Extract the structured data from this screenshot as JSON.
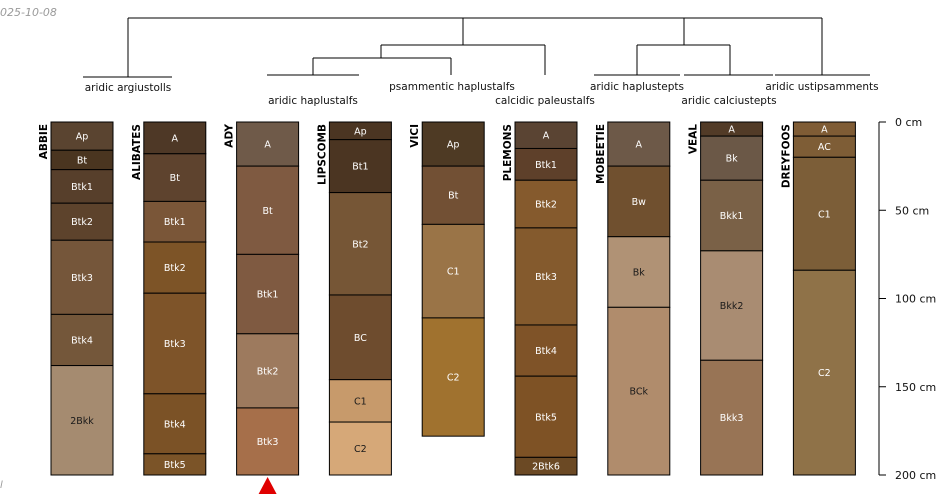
{
  "stamp": "025-10-08",
  "corner_text": "l",
  "chart_data": {
    "type": "soil-profile-sketch",
    "depth_unit": "cm",
    "depth_axis": {
      "min": 0,
      "max": 200,
      "ticks": [
        {
          "value": 0,
          "label": "0 cm"
        },
        {
          "value": 50,
          "label": "50 cm"
        },
        {
          "value": 100,
          "label": "100 cm"
        },
        {
          "value": 150,
          "label": "150 cm"
        },
        {
          "value": 200,
          "label": "200 cm"
        }
      ]
    },
    "taxonomic_labels": [
      "aridic argiustolls",
      "aridic haplustalfs",
      "psammentic haplustalfs",
      "calcidic paleustalfs",
      "aridic haplustepts",
      "aridic calciustepts",
      "aridic ustipsamments"
    ],
    "truncation_marker": {
      "profile": "ADY",
      "color": "#e00000"
    },
    "profiles": [
      {
        "name": "ABBIE",
        "horizons": [
          {
            "name": "Ap",
            "top": 0,
            "bottom": 16,
            "color": "#5a4430",
            "dark_text": false
          },
          {
            "name": "Bt",
            "top": 16,
            "bottom": 27,
            "color": "#4a3520",
            "dark_text": false
          },
          {
            "name": "Btk1",
            "top": 27,
            "bottom": 46,
            "color": "#573f2b",
            "dark_text": false
          },
          {
            "name": "Btk2",
            "top": 46,
            "bottom": 67,
            "color": "#5d432c",
            "dark_text": false
          },
          {
            "name": "Btk3",
            "top": 67,
            "bottom": 109,
            "color": "#75563a",
            "dark_text": false
          },
          {
            "name": "Btk4",
            "top": 109,
            "bottom": 138,
            "color": "#74573a",
            "dark_text": false
          },
          {
            "name": "2Bkk",
            "top": 138,
            "bottom": 200,
            "color": "#a58b70",
            "dark_text": true
          }
        ]
      },
      {
        "name": "ALIBATES",
        "horizons": [
          {
            "name": "A",
            "top": 0,
            "bottom": 18,
            "color": "#4e3826",
            "dark_text": false
          },
          {
            "name": "Bt",
            "top": 18,
            "bottom": 45,
            "color": "#5e432e",
            "dark_text": false
          },
          {
            "name": "Btk1",
            "top": 45,
            "bottom": 68,
            "color": "#7a5638",
            "dark_text": false
          },
          {
            "name": "Btk2",
            "top": 68,
            "bottom": 97,
            "color": "#7d5427",
            "dark_text": false
          },
          {
            "name": "Btk3",
            "top": 97,
            "bottom": 154,
            "color": "#7e5429",
            "dark_text": false
          },
          {
            "name": "Btk4",
            "top": 154,
            "bottom": 188,
            "color": "#7b5226",
            "dark_text": false
          },
          {
            "name": "Btk5",
            "top": 188,
            "bottom": 200,
            "color": "#7b5428",
            "dark_text": false
          }
        ]
      },
      {
        "name": "ADY",
        "horizons": [
          {
            "name": "A",
            "top": 0,
            "bottom": 25,
            "color": "#6f5a49",
            "dark_text": false
          },
          {
            "name": "Bt",
            "top": 25,
            "bottom": 75,
            "color": "#7f5a41",
            "dark_text": false
          },
          {
            "name": "Btk1",
            "top": 75,
            "bottom": 120,
            "color": "#7f5a41",
            "dark_text": false
          },
          {
            "name": "Btk2",
            "top": 120,
            "bottom": 162,
            "color": "#9d7a5e",
            "dark_text": false
          },
          {
            "name": "Btk3",
            "top": 162,
            "bottom": 200,
            "color": "#a66f4a",
            "dark_text": false
          }
        ]
      },
      {
        "name": "LIPSCOMB",
        "horizons": [
          {
            "name": "Ap",
            "top": 0,
            "bottom": 10,
            "color": "#4b3522",
            "dark_text": false
          },
          {
            "name": "Bt1",
            "top": 10,
            "bottom": 40,
            "color": "#4b3522",
            "dark_text": false
          },
          {
            "name": "Bt2",
            "top": 40,
            "bottom": 98,
            "color": "#765636",
            "dark_text": false
          },
          {
            "name": "BC",
            "top": 98,
            "bottom": 146,
            "color": "#6e4c2e",
            "dark_text": false
          },
          {
            "name": "C1",
            "top": 146,
            "bottom": 170,
            "color": "#c79a6b",
            "dark_text": true
          },
          {
            "name": "C2",
            "top": 170,
            "bottom": 200,
            "color": "#d6a878",
            "dark_text": true
          }
        ]
      },
      {
        "name": "VICI",
        "horizons": [
          {
            "name": "Ap",
            "top": 0,
            "bottom": 25,
            "color": "#4e3a24",
            "dark_text": false
          },
          {
            "name": "Bt",
            "top": 25,
            "bottom": 58,
            "color": "#725034",
            "dark_text": false
          },
          {
            "name": "C1",
            "top": 58,
            "bottom": 111,
            "color": "#9a7447",
            "dark_text": false
          },
          {
            "name": "C2",
            "top": 111,
            "bottom": 178,
            "color": "#a0722f",
            "dark_text": false
          }
        ]
      },
      {
        "name": "PLEMONS",
        "horizons": [
          {
            "name": "A",
            "top": 0,
            "bottom": 15,
            "color": "#5a4433",
            "dark_text": false
          },
          {
            "name": "Btk1",
            "top": 15,
            "bottom": 33,
            "color": "#5e402a",
            "dark_text": false
          },
          {
            "name": "Btk2",
            "top": 33,
            "bottom": 60,
            "color": "#855a2d",
            "dark_text": false
          },
          {
            "name": "Btk3",
            "top": 60,
            "bottom": 115,
            "color": "#845a2d",
            "dark_text": false
          },
          {
            "name": "Btk4",
            "top": 115,
            "bottom": 144,
            "color": "#7f5328",
            "dark_text": false
          },
          {
            "name": "Btk5",
            "top": 144,
            "bottom": 190,
            "color": "#7e5225",
            "dark_text": false
          },
          {
            "name": "2Btk6",
            "top": 190,
            "bottom": 200,
            "color": "#6b4924",
            "dark_text": false
          }
        ]
      },
      {
        "name": "MOBEETIE",
        "horizons": [
          {
            "name": "A",
            "top": 0,
            "bottom": 25,
            "color": "#6d5948",
            "dark_text": false
          },
          {
            "name": "Bw",
            "top": 25,
            "bottom": 65,
            "color": "#70502f",
            "dark_text": false
          },
          {
            "name": "Bk",
            "top": 65,
            "bottom": 105,
            "color": "#b09275",
            "dark_text": true
          },
          {
            "name": "BCk",
            "top": 105,
            "bottom": 200,
            "color": "#b08c6c",
            "dark_text": true
          }
        ]
      },
      {
        "name": "VEAL",
        "horizons": [
          {
            "name": "A",
            "top": 0,
            "bottom": 8,
            "color": "#523b27",
            "dark_text": false
          },
          {
            "name": "Bk",
            "top": 8,
            "bottom": 33,
            "color": "#6b5847",
            "dark_text": false
          },
          {
            "name": "Bkk1",
            "top": 33,
            "bottom": 73,
            "color": "#7a6147",
            "dark_text": false
          },
          {
            "name": "Bkk2",
            "top": 73,
            "bottom": 135,
            "color": "#a98c72",
            "dark_text": true
          },
          {
            "name": "Bkk3",
            "top": 135,
            "bottom": 200,
            "color": "#987455",
            "dark_text": false
          }
        ]
      },
      {
        "name": "DREYFOOS",
        "horizons": [
          {
            "name": "A",
            "top": 0,
            "bottom": 8,
            "color": "#7f5c35",
            "dark_text": false
          },
          {
            "name": "AC",
            "top": 8,
            "bottom": 20,
            "color": "#7e5d36",
            "dark_text": false
          },
          {
            "name": "C1",
            "top": 20,
            "bottom": 84,
            "color": "#7c5e38",
            "dark_text": false
          },
          {
            "name": "C2",
            "top": 84,
            "bottom": 200,
            "color": "#8f7248",
            "dark_text": false
          }
        ]
      }
    ]
  }
}
